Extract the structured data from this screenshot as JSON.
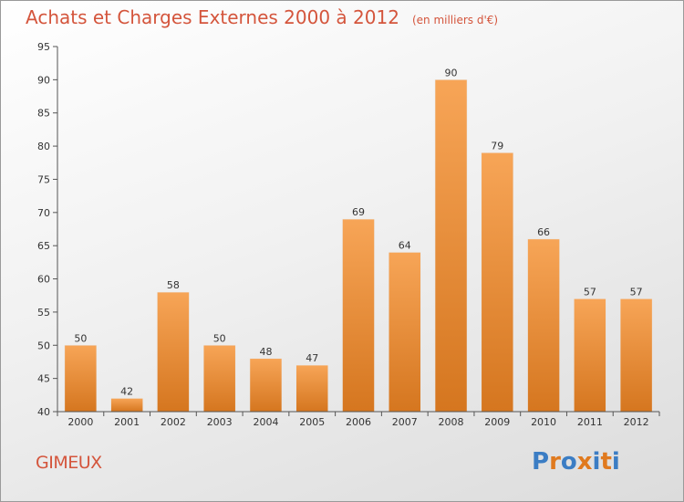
{
  "header": {
    "title": "Achats et Charges Externes 2000 à 2012",
    "subtitle": "(en milliers d'€)"
  },
  "footer": {
    "commune": "GIMEUX",
    "logo_letters": [
      "P",
      "r",
      "o",
      "x",
      "i",
      "t",
      "i"
    ]
  },
  "colors": {
    "accent": "#d4553c",
    "bar_top": "#f7a557",
    "bar_bottom": "#d5761f",
    "logo": [
      "#3b7dc4",
      "#e07a1f",
      "#3b7dc4",
      "#e07a1f",
      "#3b7dc4",
      "#e07a1f",
      "#3b7dc4"
    ]
  },
  "chart_data": {
    "type": "bar",
    "title": "Achats et Charges Externes 2000 à 2012",
    "subtitle": "(en milliers d'€)",
    "categories": [
      "2000",
      "2001",
      "2002",
      "2003",
      "2004",
      "2005",
      "2006",
      "2007",
      "2008",
      "2009",
      "2010",
      "2011",
      "2012"
    ],
    "values": [
      50,
      42,
      58,
      50,
      48,
      47,
      69,
      64,
      90,
      79,
      66,
      57,
      57
    ],
    "ylim": [
      40,
      95
    ],
    "yticks": [
      40,
      45,
      50,
      55,
      60,
      65,
      70,
      75,
      80,
      85,
      90,
      95
    ],
    "grid": false,
    "legend": "none"
  }
}
